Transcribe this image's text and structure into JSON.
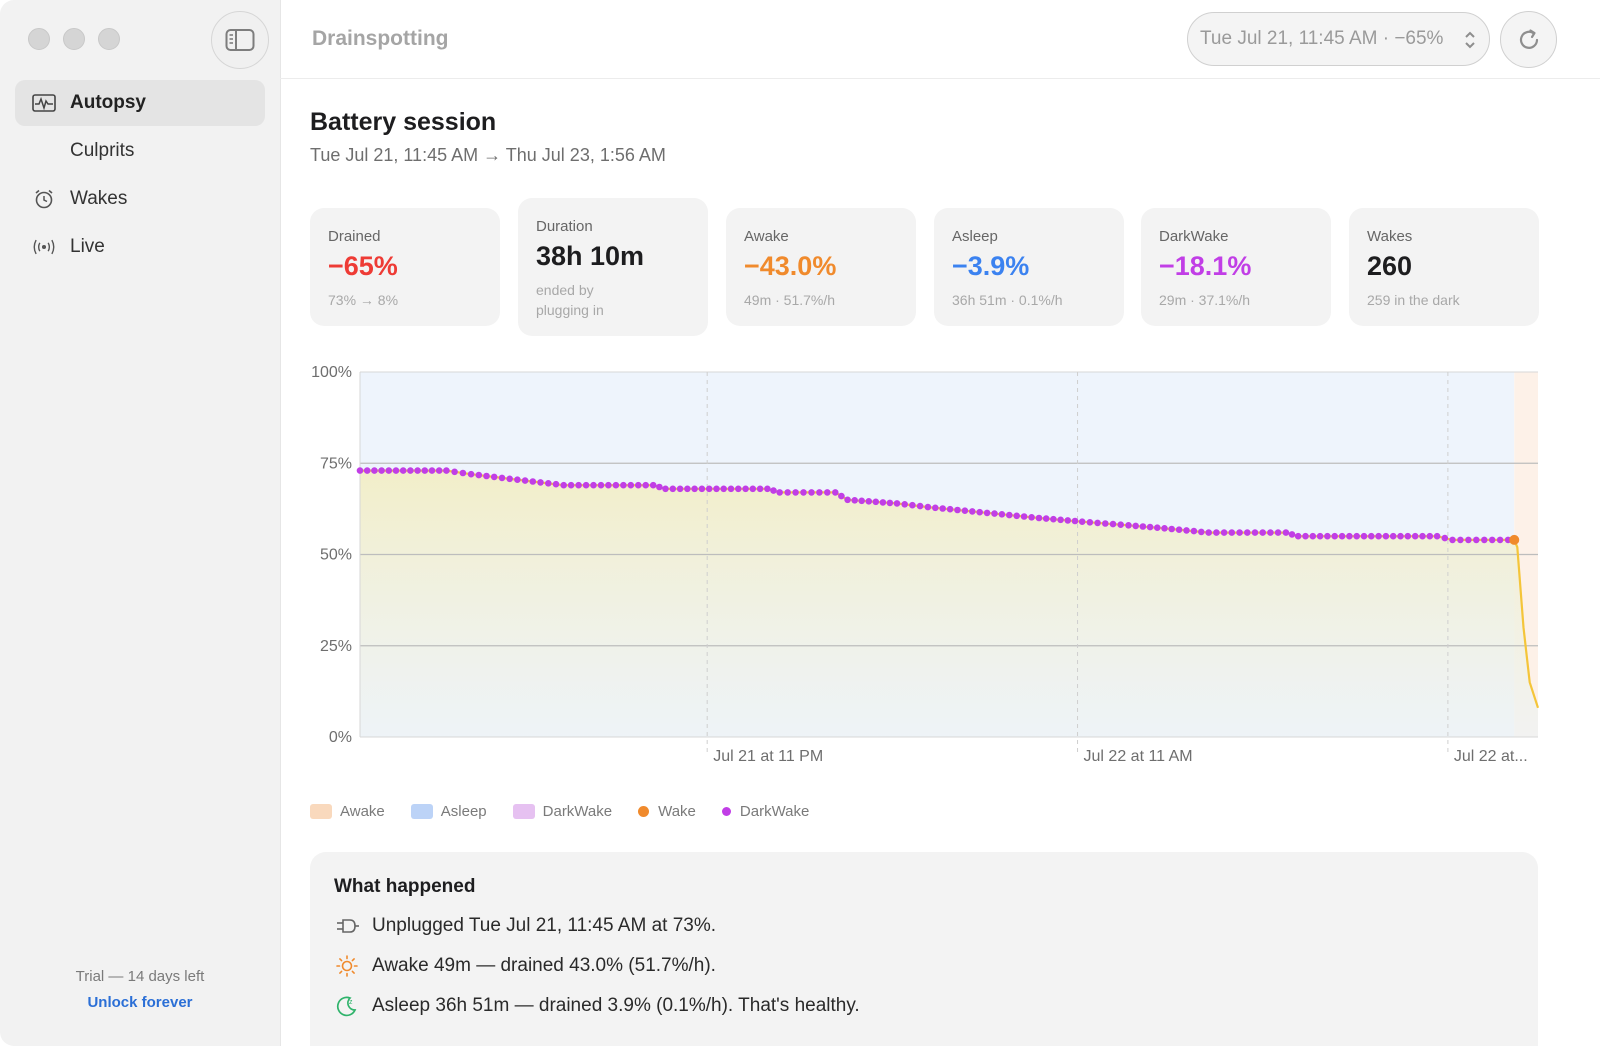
{
  "app": {
    "title": "Drainspotting"
  },
  "sidebar": {
    "items": [
      {
        "label": "Autopsy",
        "icon": "activity-icon",
        "active": true
      },
      {
        "label": "Culprits",
        "icon": "",
        "active": false
      },
      {
        "label": "Wakes",
        "icon": "alarm-clock-icon",
        "active": false
      },
      {
        "label": "Live",
        "icon": "broadcast-icon",
        "active": false
      }
    ],
    "trial_text": "Trial — 14 days left",
    "unlock_label": "Unlock forever"
  },
  "toolbar": {
    "session_selected": "Tue Jul 21, 11:45 AM · −65%",
    "refresh_icon": "refresh-icon"
  },
  "session": {
    "title": "Battery session",
    "range": "Tue Jul 21, 11:45 AM → Thu Jul 23, 1:56 AM"
  },
  "stats": [
    {
      "label": "Drained",
      "value": "−65%",
      "sub": "73% → 8%",
      "color": "#ee3b35"
    },
    {
      "label": "Duration",
      "value": "38h 10m",
      "sub": "ended by plugging in",
      "color": "#1d1d1f"
    },
    {
      "label": "Awake",
      "value": "−43.0%",
      "sub": "49m · 51.7%/h",
      "color": "#f08a2c"
    },
    {
      "label": "Asleep",
      "value": "−3.9%",
      "sub": "36h 51m · 0.1%/h",
      "color": "#3b82f0"
    },
    {
      "label": "DarkWake",
      "value": "−18.1%",
      "sub": "29m · 37.1%/h",
      "color": "#c13ee6"
    },
    {
      "label": "Wakes",
      "value": "260",
      "sub": "259 in the dark",
      "color": "#1d1d1f"
    }
  ],
  "chart_data": {
    "type": "line",
    "y_ticks": [
      "100%",
      "75%",
      "50%",
      "25%",
      "0%"
    ],
    "x_ticks": [
      "Jul 21 at 11 PM",
      "Jul 22 at 11 AM",
      "Jul 22 at..."
    ],
    "ylim": [
      0,
      100
    ],
    "x_unit": "hours since Tue Jul 21, 11:45 AM",
    "xlim": [
      0,
      38.17
    ],
    "bands": [
      {
        "state": "Asleep",
        "from": 0,
        "to": 37.4
      },
      {
        "state": "Awake",
        "from": 37.4,
        "to": 38.17
      }
    ],
    "battery_line": [
      [
        0,
        73
      ],
      [
        2.8,
        73
      ],
      [
        3.6,
        72
      ],
      [
        4.6,
        71
      ],
      [
        5.6,
        70
      ],
      [
        6.6,
        69
      ],
      [
        9.5,
        69
      ],
      [
        9.9,
        68
      ],
      [
        13.2,
        68
      ],
      [
        13.6,
        67
      ],
      [
        15.4,
        67
      ],
      [
        15.8,
        65
      ],
      [
        17.4,
        64
      ],
      [
        18.4,
        63
      ],
      [
        19.6,
        62
      ],
      [
        20.8,
        61
      ],
      [
        22.0,
        60
      ],
      [
        23.4,
        59
      ],
      [
        24.9,
        58
      ],
      [
        26.3,
        57
      ],
      [
        27.5,
        56
      ],
      [
        30.0,
        56
      ],
      [
        30.4,
        55
      ],
      [
        34.9,
        55
      ],
      [
        35.4,
        54
      ],
      [
        37.4,
        54
      ],
      [
        37.5,
        52
      ],
      [
        37.7,
        30
      ],
      [
        37.9,
        15
      ],
      [
        38.17,
        8
      ]
    ],
    "darkwake_dots": [
      [
        0,
        73
      ],
      [
        2.8,
        73
      ],
      [
        3.6,
        72
      ],
      [
        4.6,
        71
      ],
      [
        5.6,
        70
      ],
      [
        6.6,
        69
      ],
      [
        9.5,
        69
      ],
      [
        9.9,
        68
      ],
      [
        13.2,
        68
      ],
      [
        13.6,
        67
      ],
      [
        15.4,
        67
      ],
      [
        15.8,
        65
      ],
      [
        17.4,
        64
      ],
      [
        18.4,
        63
      ],
      [
        19.6,
        62
      ],
      [
        20.8,
        61
      ],
      [
        22.0,
        60
      ],
      [
        23.4,
        59
      ],
      [
        24.9,
        58
      ],
      [
        26.3,
        57
      ],
      [
        27.5,
        56
      ],
      [
        30.0,
        56
      ],
      [
        30.4,
        55
      ],
      [
        34.9,
        55
      ],
      [
        35.4,
        54
      ],
      [
        37.2,
        54
      ]
    ],
    "wake_dots": [
      [
        37.4,
        54
      ]
    ]
  },
  "legend": [
    {
      "label": "Awake",
      "kind": "swatch",
      "color": "#f9d9bd"
    },
    {
      "label": "Asleep",
      "kind": "swatch",
      "color": "#bcd3f7"
    },
    {
      "label": "DarkWake",
      "kind": "swatch",
      "color": "#e6c1f1"
    },
    {
      "label": "Wake",
      "kind": "dot",
      "color": "#f08a2c"
    },
    {
      "label": "DarkWake",
      "kind": "dot",
      "color": "#c13ee6"
    }
  ],
  "what_happened": {
    "title": "What happened",
    "events": [
      {
        "icon": "plug-icon",
        "text": "Unplugged Tue Jul 21, 11:45 AM at 73%."
      },
      {
        "icon": "sun-icon",
        "text": "Awake 49m — drained 43.0% (51.7%/h)."
      },
      {
        "icon": "moon-icon",
        "text": "Asleep 36h 51m — drained 3.9% (0.1%/h). That's healthy."
      }
    ]
  },
  "colors": {
    "asleep_band": "#eef4fc",
    "awake_band": "#fdf1e8",
    "line_fill_top": "#f3eec6",
    "darkwake": "#c13ee6",
    "wake": "#f08a2c",
    "battery_line": "#f4c53a"
  }
}
